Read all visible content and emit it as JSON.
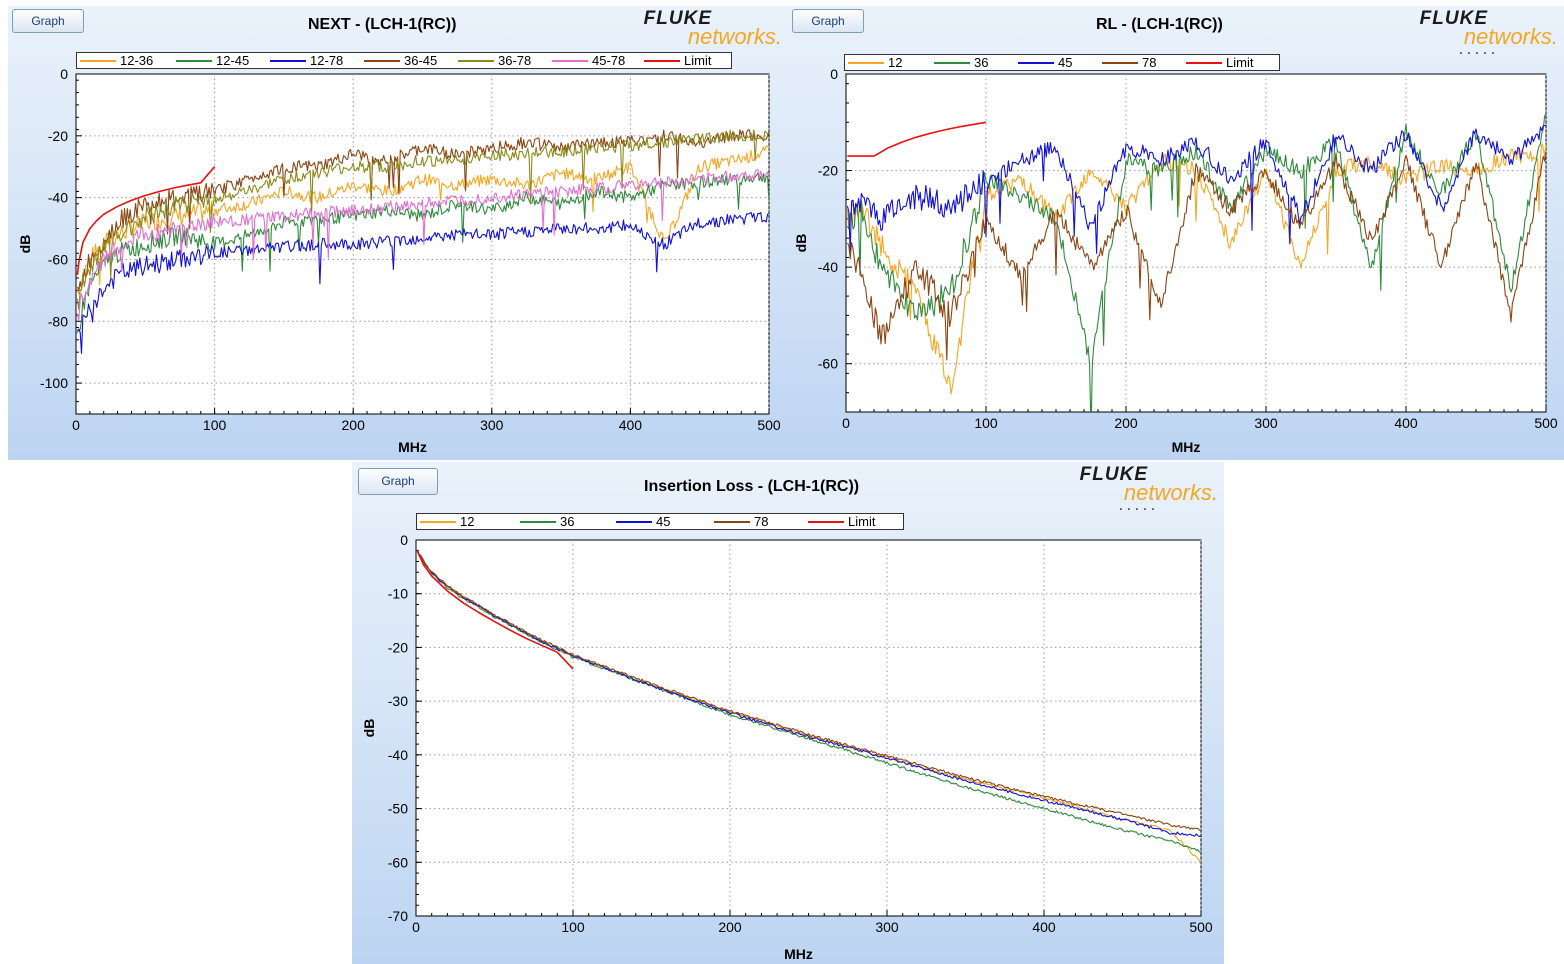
{
  "graph_button_label": "Graph",
  "brand": {
    "name": "FLUKE",
    "sub": "networks.",
    "dots": "....."
  },
  "colors": {
    "pair_12": "#f5a623",
    "pair_36": "#2e8b3c",
    "pair_45": "#1010d8",
    "pair_78": "#8b4513",
    "pair_12_36": "#f5a623",
    "pair_12_45": "#2e8b3c",
    "pair_12_78": "#1010d8",
    "pair_36_45": "#8b4513",
    "pair_36_78": "#8b8b1a",
    "pair_45_78": "#e070d0",
    "limit": "#e81010"
  },
  "chart_data": [
    {
      "type": "line",
      "title": "NEXT - (LCH-1(RC))",
      "xlabel": "MHz",
      "ylabel": "dB",
      "xlim": [
        0,
        500
      ],
      "ylim": [
        -110,
        0
      ],
      "xticks": [
        0,
        100,
        200,
        300,
        400,
        500
      ],
      "yticks": [
        0,
        -20,
        -40,
        -60,
        -80,
        -100
      ],
      "grid": true,
      "legend_position": "top",
      "series": [
        {
          "name": "12-36",
          "color": "#f5a623",
          "x": [
            1,
            5,
            10,
            20,
            30,
            50,
            75,
            100,
            125,
            150,
            175,
            200,
            225,
            250,
            275,
            300,
            325,
            350,
            375,
            400,
            425,
            450,
            475,
            500
          ],
          "y": [
            -70,
            -65,
            -60,
            -55,
            -52,
            -48,
            -46,
            -44,
            -42,
            -38,
            -40,
            -36,
            -38,
            -34,
            -36,
            -34,
            -36,
            -32,
            -34,
            -30,
            -55,
            -30,
            -28,
            -25
          ]
        },
        {
          "name": "12-45",
          "color": "#2e8b3c",
          "x": [
            1,
            5,
            10,
            20,
            30,
            50,
            75,
            100,
            125,
            150,
            175,
            200,
            225,
            250,
            275,
            300,
            325,
            350,
            375,
            400,
            425,
            450,
            475,
            500
          ],
          "y": [
            -85,
            -75,
            -68,
            -62,
            -58,
            -55,
            -52,
            -55,
            -52,
            -48,
            -47,
            -46,
            -44,
            -46,
            -42,
            -44,
            -40,
            -42,
            -38,
            -40,
            -36,
            -35,
            -34,
            -33
          ]
        },
        {
          "name": "12-78",
          "color": "#1010d8",
          "x": [
            1,
            5,
            10,
            20,
            30,
            50,
            75,
            100,
            125,
            150,
            175,
            200,
            225,
            250,
            275,
            300,
            325,
            350,
            375,
            400,
            425,
            450,
            475,
            500
          ],
          "y": [
            -85,
            -80,
            -75,
            -70,
            -65,
            -62,
            -60,
            -58,
            -57,
            -56,
            -55,
            -55,
            -54,
            -53,
            -52,
            -52,
            -51,
            -50,
            -50,
            -49,
            -55,
            -48,
            -47,
            -46
          ]
        },
        {
          "name": "36-45",
          "color": "#8b4513",
          "x": [
            1,
            5,
            10,
            20,
            30,
            50,
            75,
            100,
            125,
            150,
            175,
            200,
            225,
            250,
            275,
            300,
            325,
            350,
            375,
            400,
            425,
            450,
            475,
            500
          ],
          "y": [
            -72,
            -66,
            -60,
            -54,
            -48,
            -42,
            -40,
            -38,
            -34,
            -30,
            -30,
            -26,
            -28,
            -24,
            -26,
            -24,
            -22,
            -24,
            -22,
            -22,
            -20,
            -22,
            -20,
            -20
          ]
        },
        {
          "name": "36-78",
          "color": "#8b8b1a",
          "x": [
            1,
            5,
            10,
            20,
            30,
            50,
            75,
            100,
            125,
            150,
            175,
            200,
            225,
            250,
            275,
            300,
            325,
            350,
            375,
            400,
            425,
            450,
            475,
            500
          ],
          "y": [
            -75,
            -68,
            -62,
            -56,
            -52,
            -46,
            -42,
            -40,
            -38,
            -34,
            -32,
            -30,
            -30,
            -28,
            -28,
            -26,
            -26,
            -25,
            -24,
            -23,
            -22,
            -21,
            -20,
            -20
          ]
        },
        {
          "name": "45-78",
          "color": "#e070d0",
          "x": [
            1,
            5,
            10,
            20,
            30,
            50,
            75,
            100,
            125,
            150,
            175,
            200,
            225,
            250,
            275,
            300,
            325,
            350,
            375,
            400,
            425,
            450,
            475,
            500
          ],
          "y": [
            -80,
            -72,
            -66,
            -60,
            -56,
            -52,
            -50,
            -48,
            -47,
            -46,
            -45,
            -44,
            -43,
            -42,
            -41,
            -40,
            -39,
            -38,
            -37,
            -36,
            -35,
            -34,
            -33,
            -32
          ]
        },
        {
          "name": "Limit",
          "color": "#e81010",
          "x": [
            1,
            2,
            5,
            10,
            15,
            20,
            30,
            40,
            50,
            60,
            70,
            80,
            90,
            100
          ],
          "y": [
            -65,
            -61,
            -54.5,
            -50,
            -47.4,
            -45.4,
            -42.8,
            -40.9,
            -39.3,
            -38,
            -36.9,
            -36,
            -35.2,
            -30
          ]
        }
      ]
    },
    {
      "type": "line",
      "title": "RL - (LCH-1(RC))",
      "xlabel": "MHz",
      "ylabel": "dB",
      "xlim": [
        0,
        500
      ],
      "ylim": [
        -70,
        0
      ],
      "xticks": [
        0,
        100,
        200,
        300,
        400,
        500
      ],
      "yticks": [
        0,
        -20,
        -40,
        -60
      ],
      "grid": true,
      "legend_position": "top",
      "series": [
        {
          "name": "12",
          "color": "#f5a623",
          "x": [
            1,
            10,
            25,
            50,
            75,
            100,
            125,
            150,
            175,
            200,
            225,
            250,
            275,
            300,
            325,
            350,
            375,
            400,
            425,
            450,
            475,
            500
          ],
          "y": [
            -30,
            -28,
            -35,
            -45,
            -65,
            -25,
            -22,
            -30,
            -20,
            -28,
            -18,
            -20,
            -35,
            -20,
            -40,
            -20,
            -18,
            -22,
            -19,
            -20,
            -17,
            -16
          ]
        },
        {
          "name": "36",
          "color": "#2e8b3c",
          "x": [
            1,
            10,
            25,
            50,
            75,
            100,
            125,
            150,
            175,
            200,
            225,
            250,
            275,
            300,
            325,
            350,
            375,
            400,
            425,
            450,
            475,
            500
          ],
          "y": [
            -32,
            -28,
            -40,
            -50,
            -45,
            -22,
            -25,
            -30,
            -60,
            -18,
            -20,
            -16,
            -28,
            -16,
            -20,
            -14,
            -40,
            -12,
            -25,
            -12,
            -45,
            -9
          ]
        },
        {
          "name": "45",
          "color": "#1010d8",
          "x": [
            1,
            10,
            25,
            50,
            75,
            100,
            125,
            150,
            175,
            200,
            225,
            250,
            275,
            300,
            325,
            350,
            375,
            400,
            425,
            450,
            475,
            500
          ],
          "y": [
            -28,
            -26,
            -30,
            -25,
            -28,
            -22,
            -18,
            -15,
            -32,
            -15,
            -18,
            -14,
            -22,
            -14,
            -30,
            -13,
            -20,
            -12,
            -28,
            -12,
            -18,
            -11
          ]
        },
        {
          "name": "78",
          "color": "#8b4513",
          "x": [
            1,
            10,
            25,
            50,
            75,
            100,
            125,
            150,
            175,
            200,
            225,
            250,
            275,
            300,
            325,
            350,
            375,
            400,
            425,
            450,
            475,
            500
          ],
          "y": [
            -35,
            -40,
            -55,
            -40,
            -50,
            -30,
            -42,
            -28,
            -40,
            -28,
            -48,
            -20,
            -28,
            -20,
            -32,
            -18,
            -35,
            -18,
            -40,
            -18,
            -50,
            -16
          ]
        },
        {
          "name": "Limit",
          "color": "#e81010",
          "x": [
            1,
            10,
            20,
            30,
            40,
            50,
            60,
            70,
            80,
            90,
            100
          ],
          "y": [
            -17,
            -17,
            -17,
            -15.3,
            -14.1,
            -13.1,
            -12.3,
            -11.6,
            -11,
            -10.5,
            -10
          ]
        }
      ]
    },
    {
      "type": "line",
      "title": "Insertion Loss - (LCH-1(RC))",
      "xlabel": "MHz",
      "ylabel": "dB",
      "xlim": [
        0,
        500
      ],
      "ylim": [
        -70,
        0
      ],
      "xticks": [
        0,
        100,
        200,
        300,
        400,
        500
      ],
      "yticks": [
        0,
        -10,
        -20,
        -30,
        -40,
        -50,
        -60,
        -70
      ],
      "grid": true,
      "legend_position": "top",
      "series": [
        {
          "name": "12",
          "color": "#f5a623",
          "x": [
            1,
            5,
            10,
            20,
            30,
            50,
            75,
            100,
            150,
            200,
            250,
            300,
            350,
            400,
            450,
            480,
            500
          ],
          "y": [
            -2,
            -4,
            -6,
            -8.5,
            -10.5,
            -14,
            -18,
            -21.5,
            -27,
            -32,
            -36.5,
            -40.5,
            -44.5,
            -48,
            -52,
            -54,
            -60
          ]
        },
        {
          "name": "36",
          "color": "#2e8b3c",
          "x": [
            1,
            5,
            10,
            20,
            30,
            50,
            75,
            100,
            150,
            200,
            250,
            300,
            350,
            400,
            450,
            480,
            500
          ],
          "y": [
            -2,
            -4.2,
            -6.2,
            -8.8,
            -10.8,
            -14.3,
            -18.2,
            -21.8,
            -27.2,
            -32.5,
            -37,
            -41.5,
            -46,
            -50,
            -54,
            -56,
            -58
          ]
        },
        {
          "name": "45",
          "color": "#1010d8",
          "x": [
            1,
            5,
            10,
            20,
            30,
            50,
            75,
            100,
            150,
            200,
            250,
            300,
            350,
            400,
            450,
            480,
            500
          ],
          "y": [
            -2,
            -4.1,
            -6.1,
            -8.6,
            -10.6,
            -14.1,
            -18.1,
            -21.6,
            -27.1,
            -32.2,
            -36.6,
            -40.6,
            -44.8,
            -48.5,
            -52,
            -54.5,
            -55
          ]
        },
        {
          "name": "78",
          "color": "#8b4513",
          "x": [
            1,
            5,
            10,
            20,
            30,
            50,
            75,
            100,
            150,
            200,
            250,
            300,
            350,
            400,
            450,
            480,
            500
          ],
          "y": [
            -2,
            -4,
            -6,
            -8.5,
            -10.5,
            -14,
            -17.9,
            -21.4,
            -26.8,
            -31.8,
            -36.2,
            -40.2,
            -44.2,
            -47.8,
            -51,
            -53,
            -54
          ]
        },
        {
          "name": "Limit",
          "color": "#e81010",
          "x": [
            1,
            5,
            10,
            20,
            30,
            40,
            50,
            60,
            70,
            80,
            90,
            100
          ],
          "y": [
            -2.2,
            -4.7,
            -6.7,
            -9.5,
            -11.7,
            -13.5,
            -15.2,
            -16.8,
            -18.3,
            -19.6,
            -20.9,
            -24
          ]
        }
      ]
    }
  ]
}
